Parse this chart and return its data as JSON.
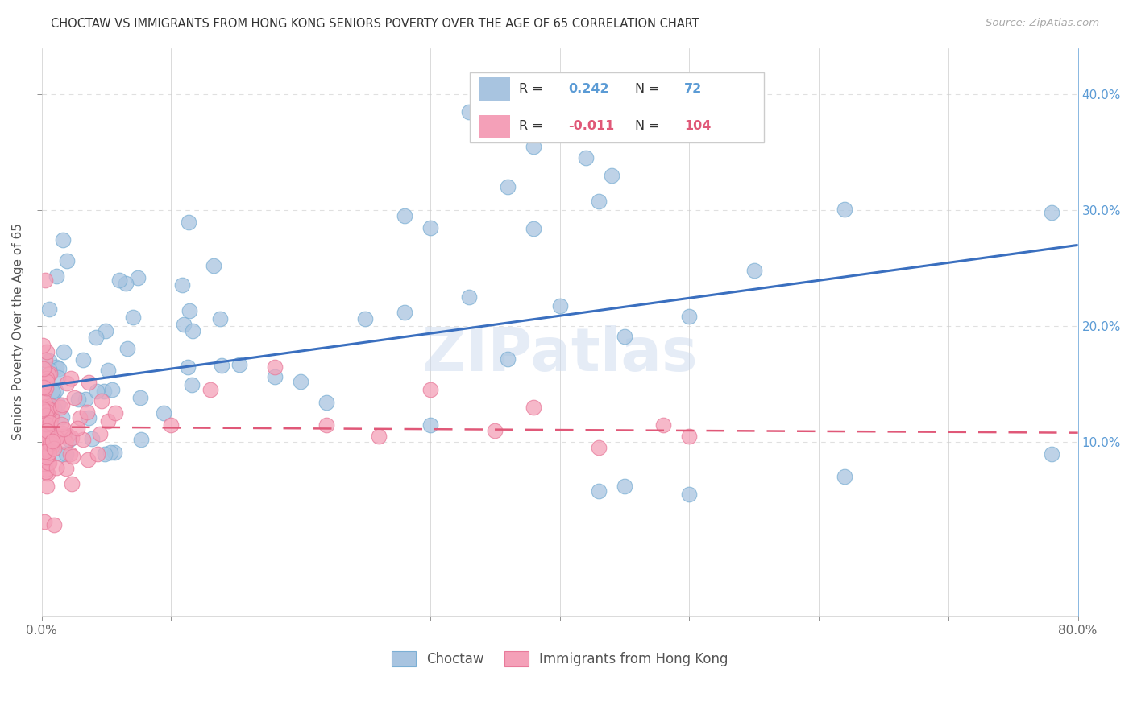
{
  "title": "CHOCTAW VS IMMIGRANTS FROM HONG KONG SENIORS POVERTY OVER THE AGE OF 65 CORRELATION CHART",
  "source": "Source: ZipAtlas.com",
  "ylabel": "Seniors Poverty Over the Age of 65",
  "watermark": "ZIPatlas",
  "choctaw_R": 0.242,
  "choctaw_N": 72,
  "hk_R": -0.011,
  "hk_N": 104,
  "choctaw_color": "#a8c4e0",
  "choctaw_edge_color": "#7bafd4",
  "choctaw_line_color": "#3a6fbf",
  "hk_color": "#f4a0b8",
  "hk_edge_color": "#e87a9a",
  "hk_line_color": "#e05878",
  "title_color": "#333333",
  "source_color": "#aaaaaa",
  "ylabel_color": "#555555",
  "right_axis_color": "#5b9bd5",
  "grid_color": "#e0e0e0",
  "background_color": "#ffffff",
  "xlim": [
    0.0,
    0.8
  ],
  "ylim": [
    -0.05,
    0.44
  ],
  "xtick_positions": [
    0.0,
    0.1,
    0.2,
    0.3,
    0.4,
    0.5,
    0.6,
    0.7,
    0.8
  ],
  "xtick_labels": [
    "0.0%",
    "",
    "",
    "",
    "",
    "",
    "",
    "",
    "80.0%"
  ],
  "ytick_positions": [
    0.1,
    0.2,
    0.3,
    0.4
  ],
  "ytick_labels_right": [
    "10.0%",
    "20.0%",
    "30.0%",
    "40.0%"
  ],
  "choctaw_trend_x0": 0.0,
  "choctaw_trend_y0": 0.148,
  "choctaw_trend_x1": 0.8,
  "choctaw_trend_y1": 0.27,
  "hk_trend_x0": 0.0,
  "hk_trend_y0": 0.113,
  "hk_trend_x1": 0.8,
  "hk_trend_y1": 0.108,
  "legend_box_color": "#f5f5f5",
  "legend_border_color": "#cccccc"
}
